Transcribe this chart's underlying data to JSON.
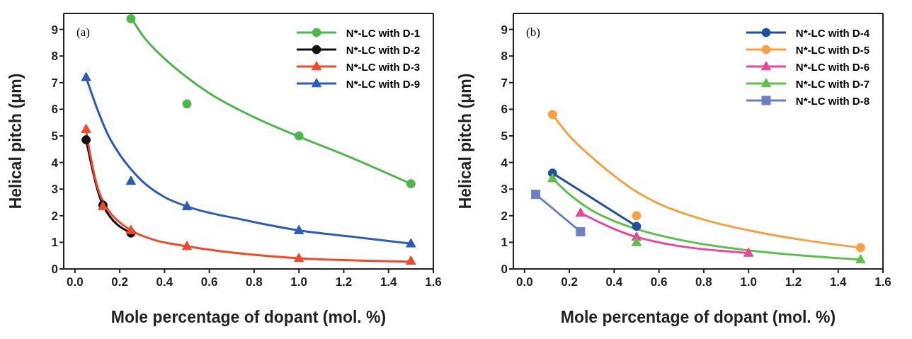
{
  "chart_data": [
    {
      "type": "scatter",
      "xlabel": "Mole percentage of dopant (mol. %)",
      "ylabel": "Helical pitch (μm)",
      "annotations": [
        "(a)"
      ],
      "xlim": [
        -0.05,
        1.6
      ],
      "ylim": [
        0,
        9.6
      ],
      "xticks": [
        {
          "value": 0,
          "label": "0.0"
        },
        {
          "value": 0.2,
          "label": "0.2"
        },
        {
          "value": 0.4,
          "label": "0.4"
        },
        {
          "value": 0.6,
          "label": "0.6"
        },
        {
          "value": 0.8,
          "label": "0.8"
        },
        {
          "value": 1,
          "label": "1.0"
        },
        {
          "value": 1.2,
          "label": "1.2"
        },
        {
          "value": 1.4,
          "label": "1.4"
        },
        {
          "value": 1.6,
          "label": "1.6"
        }
      ],
      "yticks": [
        0,
        1,
        2,
        3,
        4,
        5,
        6,
        7,
        8,
        9
      ],
      "legend": "top right",
      "series": [
        {
          "name": "N*-LC with D-1",
          "marker": "circle",
          "color": "#4cb84a",
          "x": [
            0.25,
            0.5,
            1.0,
            1.5
          ],
          "values": [
            9.4,
            6.2,
            5.0,
            3.2
          ]
        },
        {
          "type": "line",
          "marker": "none",
          "color": "#4cb84a",
          "x": [
            0.25,
            0.3,
            0.4,
            0.5,
            0.6,
            0.8,
            1.0,
            1.2,
            1.5
          ],
          "values": [
            9.45,
            8.8,
            7.9,
            7.2,
            6.6,
            5.7,
            4.97,
            4.3,
            3.2
          ]
        },
        {
          "name": "N*-LC with D-2",
          "type": "line",
          "marker": "circle",
          "color": "#111111",
          "x": [
            0.05,
            0.125,
            0.25
          ],
          "values": [
            4.85,
            2.4,
            1.35
          ]
        },
        {
          "name": "N*-LC with D-3",
          "type": "scatter",
          "marker": "triangle",
          "color": "#f04a2a",
          "x": [
            0.05,
            0.125,
            0.25,
            0.5,
            1.0,
            1.5
          ],
          "values": [
            5.25,
            2.35,
            1.45,
            0.85,
            0.4,
            0.3
          ]
        },
        {
          "type": "line",
          "marker": "none",
          "color": "#f04a2a",
          "x": [
            0.05,
            0.08,
            0.1,
            0.15,
            0.2,
            0.25,
            0.35,
            0.5,
            0.75,
            1.0,
            1.25,
            1.5
          ],
          "values": [
            5.2,
            3.8,
            3.1,
            2.2,
            1.75,
            1.45,
            1.1,
            0.85,
            0.57,
            0.4,
            0.32,
            0.27
          ]
        },
        {
          "name": "N*-LC with D-9",
          "type": "scatter",
          "marker": "triangle",
          "color": "#2a5cb8",
          "x": [
            0.05,
            0.25,
            0.5,
            1.0,
            1.5
          ],
          "values": [
            7.2,
            3.3,
            2.35,
            1.45,
            0.95
          ]
        },
        {
          "type": "line",
          "marker": "none",
          "color": "#2a5cb8",
          "x": [
            0.05,
            0.1,
            0.15,
            0.2,
            0.25,
            0.3,
            0.4,
            0.5,
            0.75,
            1.0,
            1.25,
            1.5
          ],
          "values": [
            7.2,
            6.0,
            5.0,
            4.3,
            3.75,
            3.3,
            2.7,
            2.35,
            1.85,
            1.45,
            1.2,
            0.95
          ]
        }
      ]
    },
    {
      "type": "scatter",
      "xlabel": "Mole percentage of dopant (mol. %)",
      "ylabel": "Helical pitch (μm)",
      "annotations": [
        "(b)"
      ],
      "xlim": [
        -0.05,
        1.6
      ],
      "ylim": [
        0,
        9.6
      ],
      "xticks": [
        {
          "value": 0,
          "label": "0.0"
        },
        {
          "value": 0.2,
          "label": "0.2"
        },
        {
          "value": 0.4,
          "label": "0.4"
        },
        {
          "value": 0.6,
          "label": "0.6"
        },
        {
          "value": 0.8,
          "label": "0.8"
        },
        {
          "value": 1,
          "label": "1.0"
        },
        {
          "value": 1.2,
          "label": "1.2"
        },
        {
          "value": 1.4,
          "label": "1.4"
        },
        {
          "value": 1.6,
          "label": "1.6"
        }
      ],
      "yticks": [
        0,
        1,
        2,
        3,
        4,
        5,
        6,
        7,
        8,
        9
      ],
      "legend": "top right",
      "series": [
        {
          "name": "N*-LC with D-4",
          "type": "line",
          "marker": "circle",
          "color": "#1f4fa0",
          "x": [
            0.125,
            0.5
          ],
          "values": [
            3.6,
            1.6
          ]
        },
        {
          "name": "N*-LC with D-5",
          "marker": "circle",
          "color": "#f7a040",
          "x": [
            0.125,
            0.5,
            1.5
          ],
          "values": [
            5.8,
            2.0,
            0.8
          ]
        },
        {
          "type": "line",
          "marker": "none",
          "color": "#f7a040",
          "x": [
            0.125,
            0.2,
            0.3,
            0.4,
            0.5,
            0.6,
            0.8,
            1.0,
            1.25,
            1.5
          ],
          "values": [
            5.8,
            5.0,
            4.2,
            3.5,
            2.9,
            2.45,
            1.85,
            1.45,
            1.08,
            0.8
          ]
        },
        {
          "name": "N*-LC with D-6",
          "type": "line",
          "marker": "triangle",
          "color": "#e8479a",
          "x": [
            0.25,
            0.5,
            1.0
          ],
          "values": [
            2.1,
            1.2,
            0.6
          ]
        },
        {
          "name": "N*-LC with D-7",
          "marker": "triangle",
          "color": "#5cc04a",
          "x": [
            0.125,
            0.5,
            1.5
          ],
          "values": [
            3.4,
            1.0,
            0.35
          ]
        },
        {
          "type": "line",
          "marker": "none",
          "color": "#5cc04a",
          "x": [
            0.125,
            0.2,
            0.3,
            0.4,
            0.5,
            0.75,
            1.0,
            1.25,
            1.5
          ],
          "values": [
            3.4,
            2.8,
            2.2,
            1.8,
            1.5,
            1.0,
            0.7,
            0.5,
            0.35
          ]
        },
        {
          "name": "N*-LC with D-8",
          "type": "line",
          "marker": "square",
          "color": "#6a80c0",
          "x": [
            0.05,
            0.25
          ],
          "values": [
            2.8,
            1.4
          ]
        }
      ]
    }
  ]
}
